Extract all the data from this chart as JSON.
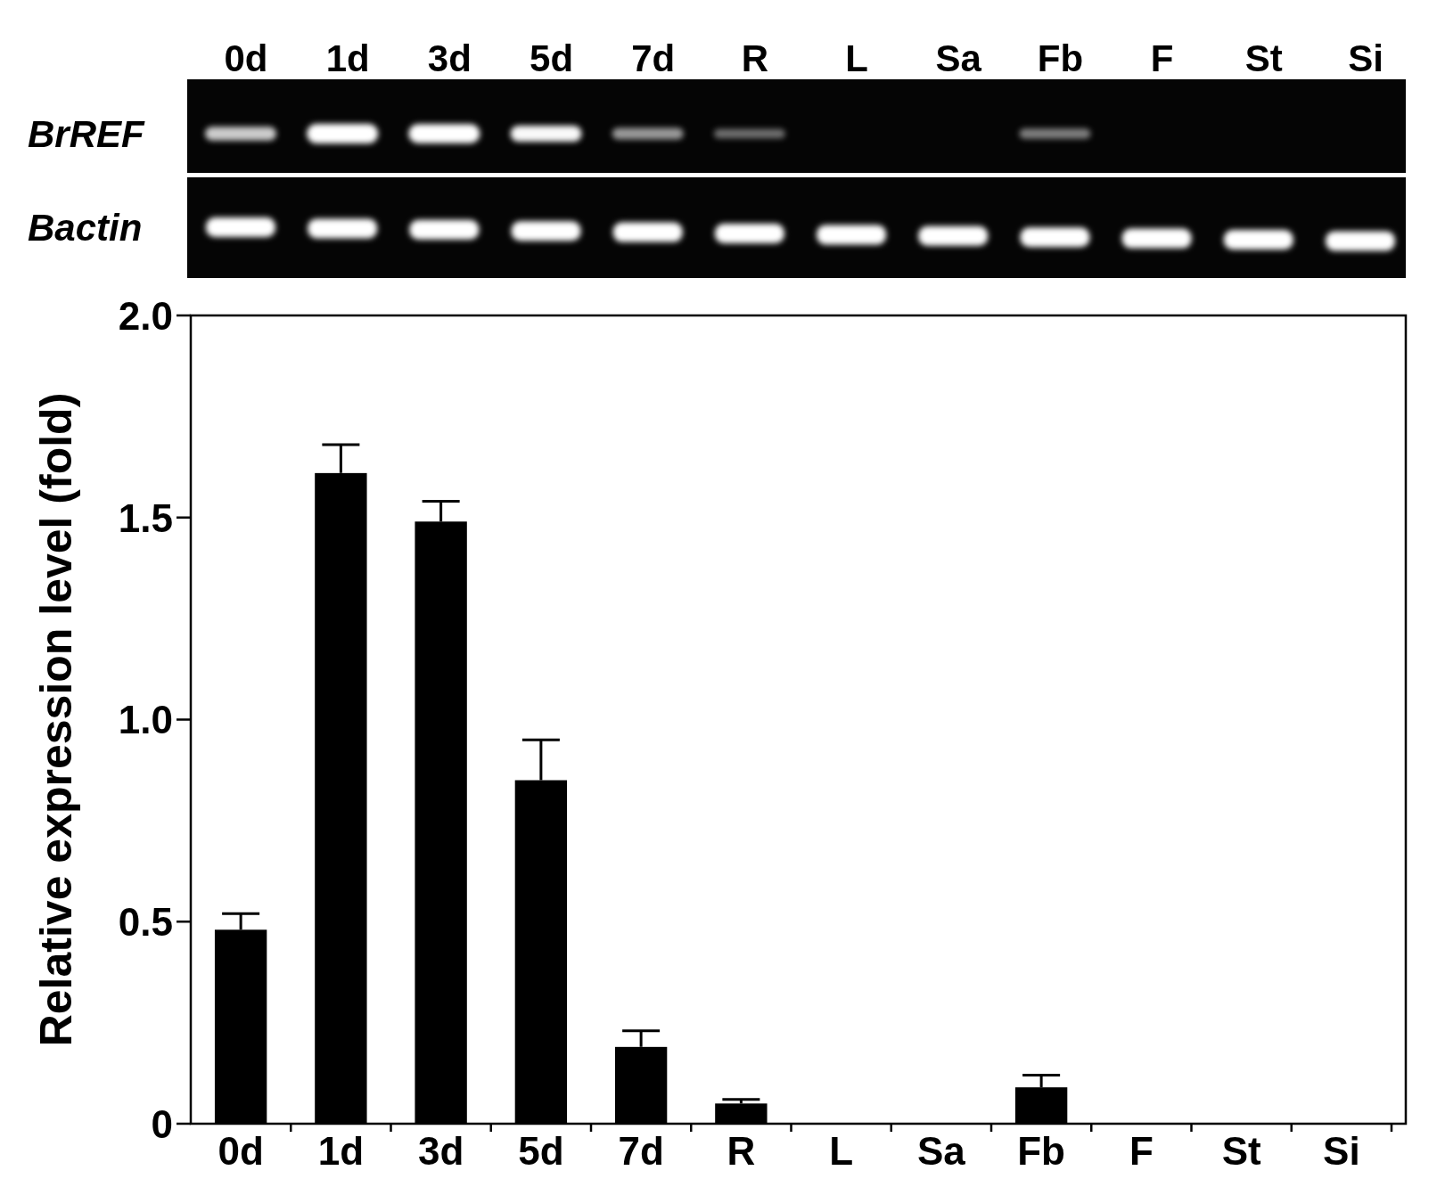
{
  "chart_data": {
    "type": "bar",
    "categories": [
      "0d",
      "1d",
      "3d",
      "5d",
      "7d",
      "R",
      "L",
      "Sa",
      "Fb",
      "F",
      "St",
      "Si"
    ],
    "values": [
      0.48,
      1.61,
      1.49,
      0.85,
      0.19,
      0.05,
      0,
      0,
      0.09,
      0,
      0,
      0
    ],
    "errors": [
      0.04,
      0.07,
      0.05,
      0.1,
      0.04,
      0.01,
      null,
      null,
      0.03,
      null,
      null,
      null
    ],
    "color": "#000000",
    "ylim": [
      0,
      2
    ],
    "yticks": [
      0,
      0.5,
      {
        "value": 1,
        "label": "1.0"
      },
      1.5,
      {
        "value": 2,
        "label": "2.0"
      }
    ],
    "ylabel": "Relative expression level (fold)",
    "annotations": [
      "BrREF",
      "Bactin"
    ]
  }
}
